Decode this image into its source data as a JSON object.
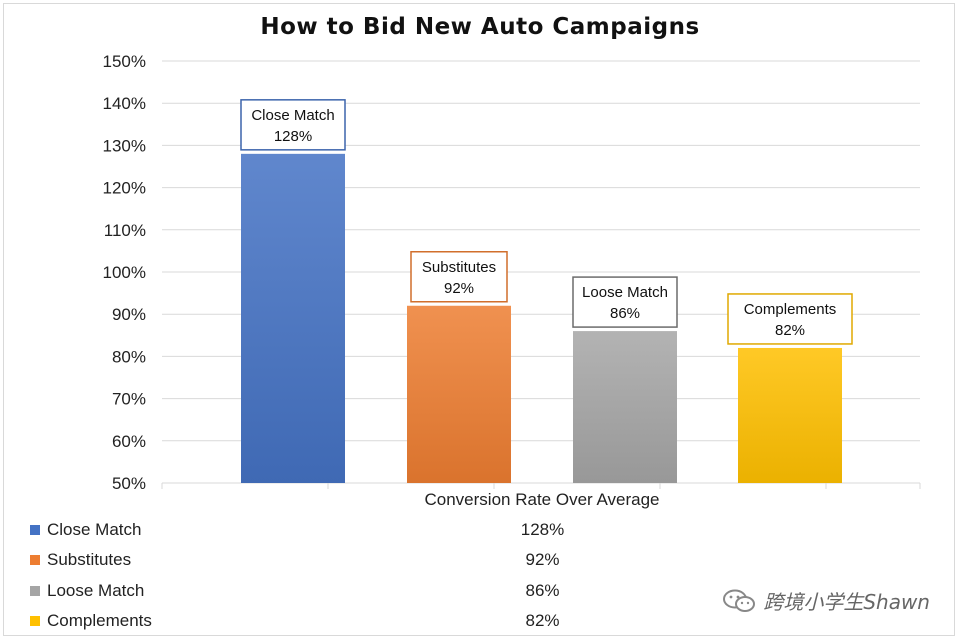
{
  "chart_data": {
    "type": "bar",
    "title": "How to Bid New Auto Campaigns",
    "xlabel": "Conversion Rate Over Average",
    "ylabel": "",
    "ylim": [
      0.5,
      1.5
    ],
    "yticks": [
      "50%",
      "60%",
      "70%",
      "80%",
      "90%",
      "100%",
      "110%",
      "120%",
      "130%",
      "140%",
      "150%"
    ],
    "grid": true,
    "legend_placement": "bottom-table",
    "categories": [
      "Close Match",
      "Substitutes",
      "Loose Match",
      "Complements"
    ],
    "values": [
      1.28,
      0.92,
      0.86,
      0.82
    ],
    "value_labels": [
      "128%",
      "92%",
      "86%",
      "82%"
    ],
    "colors": [
      "#4472C4",
      "#ED7D31",
      "#A5A5A5",
      "#FFC000"
    ]
  },
  "watermark": {
    "text": "跨境小学生Shawn",
    "icon": "wechat-icon"
  }
}
